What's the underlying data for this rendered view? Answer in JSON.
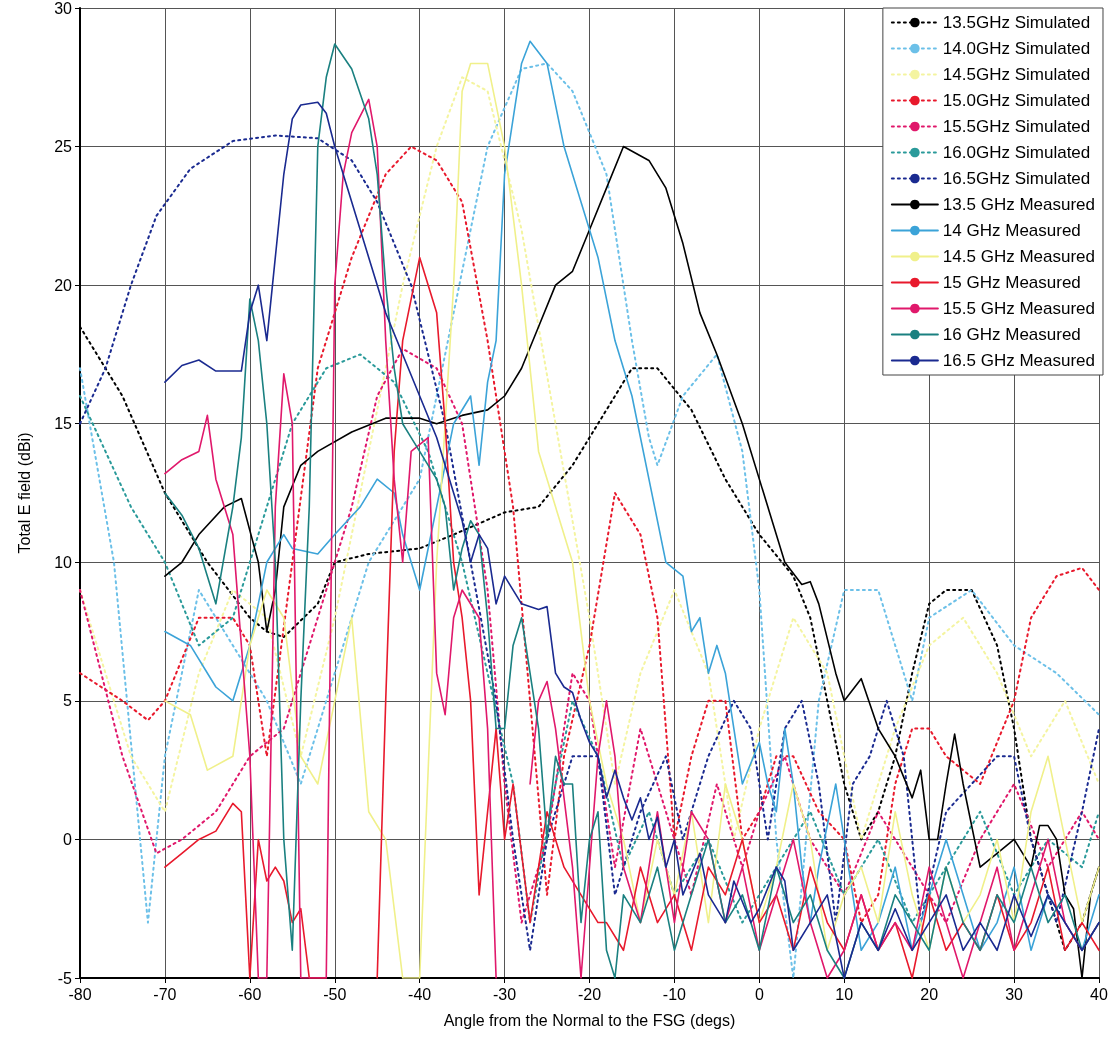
{
  "chart_data": {
    "type": "line",
    "xlabel": "Angle from the Normal to the FSG (degs)",
    "ylabel": "Total E field (dBi)",
    "xlim": [
      -80,
      40
    ],
    "xticks": [
      -80,
      -70,
      -60,
      -50,
      -40,
      -30,
      -20,
      -10,
      0,
      10,
      20,
      30,
      40
    ],
    "ylim": [
      -5,
      30
    ],
    "yticks": [
      -5,
      0,
      5,
      10,
      15,
      20,
      25,
      30
    ],
    "grid": true,
    "legend": "top right",
    "marker": "none",
    "series": [
      {
        "name": "13.5GHz Simulated",
        "color": "#000000",
        "line_style": "dotted",
        "x": [
          -80,
          -75,
          -70,
          -65,
          -60,
          -58,
          -56,
          -52,
          -50,
          -46,
          -40,
          -36,
          -30,
          -26,
          -22,
          -18,
          -15,
          -12,
          -8,
          -4,
          0,
          4,
          6,
          8,
          10,
          12,
          14,
          16,
          18,
          20,
          22,
          25,
          28,
          30,
          32,
          34,
          36,
          38,
          40
        ],
        "values": [
          18.5,
          16,
          12.5,
          10,
          8,
          7.5,
          7.3,
          8.5,
          10,
          10.3,
          10.5,
          11,
          11.8,
          12,
          13.5,
          15.5,
          17,
          17,
          15.5,
          13,
          11,
          9.5,
          8,
          5,
          2,
          0,
          1,
          3,
          6,
          8.5,
          9,
          9,
          7,
          4,
          0,
          -2,
          -4,
          -3,
          -1
        ]
      },
      {
        "name": "14.0GHz Simulated",
        "color": "#6cc0e8",
        "line_style": "dotted",
        "x": [
          -80,
          -76,
          -72,
          -70,
          -66,
          -62,
          -58,
          -54,
          -50,
          -46,
          -42,
          -40,
          -36,
          -32,
          -28,
          -25,
          -22,
          -18,
          -15,
          -13,
          -12,
          -9,
          -5,
          -2,
          0,
          2,
          4,
          7,
          10,
          14,
          18,
          20,
          25,
          30,
          35,
          40
        ],
        "values": [
          17,
          10,
          -3,
          3,
          9,
          7,
          5,
          2,
          6,
          10,
          12,
          13,
          19,
          25,
          27.8,
          28,
          27,
          24,
          18,
          14.5,
          13.5,
          16,
          17.5,
          14,
          9,
          0,
          -5,
          5,
          9,
          9,
          5,
          8,
          9,
          7,
          6,
          4.5
        ]
      },
      {
        "name": "14.5GHz Simulated",
        "color": "#f4f4a0",
        "line_style": "dotted",
        "x": [
          -80,
          -74,
          -70,
          -66,
          -62,
          -58,
          -54,
          -50,
          -46,
          -42,
          -38,
          -35,
          -32,
          -28,
          -24,
          -20,
          -17,
          -14,
          -10,
          -6,
          -3,
          0,
          4,
          8,
          12,
          16,
          20,
          24,
          28,
          32,
          36,
          40
        ],
        "values": [
          9,
          3,
          1,
          6,
          9,
          8,
          3,
          8,
          14,
          20,
          25,
          27.5,
          27,
          22,
          15,
          8,
          2,
          6,
          9,
          6,
          0,
          4,
          8,
          6,
          0,
          4,
          7,
          8,
          6,
          3,
          5,
          2
        ]
      },
      {
        "name": "15.0GHz Simulated",
        "color": "#e8192c",
        "line_style": "dotted",
        "x": [
          -80,
          -75,
          -72,
          -70,
          -66,
          -62,
          -60,
          -58,
          -55,
          -52,
          -48,
          -44,
          -41,
          -38,
          -35,
          -32,
          -29,
          -27,
          -25,
          -23,
          -20,
          -17,
          -14,
          -12,
          -10,
          -8,
          -6,
          -4,
          -2,
          0,
          2,
          4,
          7,
          10,
          12,
          14,
          16,
          18,
          20,
          22,
          26,
          30,
          32,
          35,
          38,
          40
        ],
        "values": [
          6,
          5,
          4.3,
          5,
          8,
          8,
          7,
          3,
          10,
          17,
          21,
          24,
          25,
          24.5,
          23,
          18,
          12,
          5,
          -2,
          3,
          7,
          12.5,
          11,
          8,
          0,
          3,
          5,
          5,
          0,
          1,
          3,
          3,
          1,
          0,
          -3,
          -2,
          2,
          4,
          4,
          3,
          2,
          5,
          8,
          9.5,
          9.8,
          9
        ]
      },
      {
        "name": "15.5GHz Simulated",
        "color": "#e0186b",
        "line_style": "dotted",
        "x": [
          -80,
          -75,
          -71,
          -68,
          -64,
          -60,
          -56,
          -52,
          -48,
          -45,
          -42,
          -38,
          -35,
          -32,
          -30,
          -28,
          -25,
          -22,
          -20,
          -17,
          -14,
          -11,
          -8,
          -5,
          -2,
          0,
          3,
          6,
          10,
          14,
          18,
          22,
          26,
          30,
          34,
          38,
          40
        ],
        "values": [
          9,
          3,
          -0.5,
          0,
          1,
          3,
          4,
          8,
          12,
          16,
          17.7,
          17,
          15,
          9,
          2,
          -3,
          0,
          6,
          5,
          -1,
          4,
          1,
          -2,
          2,
          -1,
          1,
          3,
          0,
          -2,
          1,
          -1,
          -3,
          0,
          2,
          -1,
          1,
          0
        ]
      },
      {
        "name": "16.0GHz Simulated",
        "color": "#2a9a9a",
        "line_style": "dotted",
        "x": [
          -80,
          -74,
          -70,
          -66,
          -62,
          -58,
          -55,
          -51,
          -47,
          -43,
          -39,
          -35,
          -32,
          -29,
          -27,
          -24,
          -22,
          -19,
          -16,
          -13,
          -10,
          -6,
          -2,
          2,
          6,
          10,
          14,
          18,
          22,
          26,
          30,
          34,
          38,
          40
        ],
        "values": [
          16,
          12,
          10,
          7,
          8,
          12,
          15,
          17,
          17.5,
          16.5,
          14,
          10,
          6,
          2,
          -3,
          2,
          5,
          3,
          -1,
          1,
          -2,
          0,
          -3,
          -1,
          1,
          -2,
          0,
          -3,
          -1,
          1,
          -2,
          0,
          -1,
          1
        ]
      },
      {
        "name": "16.5GHz Simulated",
        "color": "#1a2a90",
        "line_style": "dotted",
        "x": [
          -80,
          -77,
          -74,
          -71,
          -67,
          -62,
          -57,
          -52,
          -48,
          -45,
          -41,
          -37,
          -34,
          -31,
          -29,
          -27,
          -25,
          -22,
          -19,
          -17,
          -14,
          -11,
          -9,
          -6,
          -3,
          -1,
          1,
          3,
          5,
          7,
          9,
          11,
          13,
          15,
          17,
          19,
          22,
          25,
          28,
          30,
          32,
          35,
          38,
          40
        ],
        "values": [
          15,
          17,
          20,
          22.5,
          24.2,
          25.2,
          25.4,
          25.3,
          24.5,
          23,
          20,
          15,
          10,
          5,
          0,
          -4,
          0,
          3,
          3,
          -2,
          1,
          3,
          0,
          3,
          5,
          4,
          0,
          4,
          5,
          2,
          -3,
          2,
          3,
          5,
          3,
          -3,
          1,
          2,
          3,
          3,
          0,
          -3,
          1,
          4
        ]
      },
      {
        "name": "13.5 GHz Measured",
        "color": "#000000",
        "line_style": "solid",
        "x": [
          -70,
          -68,
          -66,
          -63,
          -61,
          -59,
          -58,
          -57,
          -56,
          -54,
          -52,
          -48,
          -44,
          -40,
          -38,
          -35,
          -32,
          -30,
          -28,
          -26,
          -24,
          -22,
          -20,
          -18,
          -16,
          -13,
          -11,
          -9,
          -7,
          -5,
          -2,
          1,
          3,
          5,
          6,
          7,
          9,
          10,
          12,
          14,
          16,
          18,
          19,
          20,
          21,
          22,
          23,
          24,
          26,
          28,
          30,
          32,
          33,
          34,
          35,
          36,
          37,
          38,
          39,
          40
        ],
        "values": [
          9.5,
          10,
          11,
          12,
          12.3,
          10,
          7.5,
          9,
          12,
          13.5,
          14,
          14.7,
          15.2,
          15.2,
          15,
          15.3,
          15.5,
          16,
          17,
          18.5,
          20,
          20.5,
          22,
          23.5,
          25,
          24.5,
          23.5,
          21.5,
          19,
          17.5,
          15,
          12,
          10,
          9.2,
          9.3,
          8.5,
          6,
          5,
          5.8,
          4,
          3,
          1.5,
          2.5,
          0,
          0,
          2,
          3.8,
          2,
          -1,
          -0.5,
          0,
          -1,
          0.5,
          0.5,
          0,
          -2,
          -2.5,
          -5,
          -2,
          -1
        ]
      },
      {
        "name": "14 GHz Measured",
        "color": "#3ba3d8",
        "line_style": "solid",
        "x": [
          -70,
          -67,
          -64,
          -62,
          -60,
          -58,
          -56,
          -55,
          -52,
          -50,
          -47,
          -45,
          -43,
          -42,
          -40,
          -38,
          -36,
          -34,
          -33,
          -32,
          -31,
          -30,
          -28,
          -27,
          -25,
          -23,
          -21,
          -19,
          -17,
          -15,
          -13,
          -11,
          -9,
          -8,
          -7,
          -6,
          -5,
          -4,
          -3,
          -2,
          0,
          1,
          2,
          3,
          4,
          5,
          6,
          7,
          9,
          10,
          12,
          14,
          16,
          18,
          20,
          22,
          24,
          26,
          28,
          30,
          32,
          34,
          36,
          38,
          40
        ],
        "values": [
          7.5,
          7,
          5.5,
          5,
          7,
          10,
          11,
          10.5,
          10.3,
          11,
          12,
          13,
          12.5,
          11,
          9,
          12,
          15,
          16,
          13.5,
          16.5,
          18,
          24,
          28,
          28.8,
          28,
          25,
          23,
          21,
          18,
          16,
          13,
          10,
          9.5,
          7.5,
          8,
          6,
          7,
          6,
          4,
          2,
          3.5,
          2,
          1,
          4,
          2,
          -1,
          -3,
          -1,
          2,
          0,
          -4,
          -3,
          -1,
          -4,
          -2,
          0,
          -2,
          -4,
          -3,
          -1,
          -4,
          -2,
          -3,
          -4,
          -2
        ]
      },
      {
        "name": "14.5 GHz Measured",
        "color": "#f0f08a",
        "line_style": "solid",
        "x": [
          -70,
          -67,
          -65,
          -62,
          -60,
          -58,
          -56,
          -54,
          -52,
          -50,
          -48,
          -46,
          -44,
          -42,
          -40,
          -38,
          -36,
          -35,
          -34,
          -32,
          -30,
          -28,
          -26,
          -24,
          -22,
          -20,
          -18,
          -16,
          -14,
          -12,
          -10,
          -8,
          -6,
          -4,
          -2,
          0,
          2,
          4,
          6,
          8,
          10,
          12,
          14,
          16,
          18,
          20,
          22,
          24,
          26,
          28,
          30,
          32,
          34,
          36,
          38,
          40
        ],
        "values": [
          5,
          4.5,
          2.5,
          3,
          7,
          9,
          8,
          3,
          2,
          5,
          8,
          1,
          0,
          -5,
          -5,
          10,
          20,
          27,
          28,
          28,
          25,
          20,
          14,
          12,
          10,
          5,
          2,
          0,
          -3,
          0,
          -2,
          1,
          -3,
          2,
          0,
          -3,
          -1,
          2,
          0,
          -4,
          -2,
          -1,
          -3,
          1,
          -2,
          -4,
          -1,
          -3,
          -2,
          0,
          -3,
          1,
          3,
          0,
          -3,
          -1
        ]
      },
      {
        "name": "15 GHz Measured",
        "color": "#e8192c",
        "line_style": "solid",
        "x": [
          -70,
          -68,
          -66,
          -64,
          -62,
          -61,
          -60,
          -59,
          -58,
          -57,
          -56,
          -55,
          -54,
          -53,
          -51,
          -49,
          -47,
          -45,
          -44,
          -43,
          -42,
          -40,
          -38,
          -37,
          -36,
          -35,
          -34,
          -33,
          -31,
          -30,
          -29,
          -27,
          -25,
          -23,
          -21,
          -19,
          -18,
          -16,
          -14,
          -12,
          -10,
          -8,
          -6,
          -4,
          -2,
          0,
          2,
          4,
          6,
          8,
          10,
          12,
          14,
          16,
          18,
          20,
          22,
          24,
          26,
          28,
          30,
          32,
          34,
          36,
          38,
          40
        ],
        "values": [
          -1,
          -0.5,
          0,
          0.3,
          1.3,
          1,
          -5,
          0,
          -1.5,
          -1,
          -1.5,
          -3,
          -2.5,
          -5,
          -5,
          null,
          null,
          -5,
          5,
          14,
          18,
          21,
          19,
          15,
          10,
          8,
          5,
          -2,
          4,
          0,
          2,
          -3,
          1,
          -1,
          -2,
          -3,
          -3,
          -4,
          -1,
          -3,
          -2,
          -4,
          -1,
          -2,
          0,
          -3,
          -2,
          -4,
          -1,
          -3,
          -4,
          -2,
          -4,
          -3,
          -5,
          -2,
          -4,
          -3,
          -4,
          -2,
          -4,
          -3,
          -1,
          -4,
          -3,
          -4
        ]
      },
      {
        "name": "15.5 GHz Measured",
        "color": "#e0186b",
        "line_style": "solid",
        "x": [
          -70,
          -68,
          -66,
          -65,
          -64,
          -62,
          -60,
          -59,
          -58,
          -57,
          -56,
          -55,
          -54,
          -53,
          -51,
          -50,
          -49,
          -48,
          -46,
          -45,
          -44,
          -43,
          -42,
          -41,
          -39,
          -38,
          -37,
          -36,
          -35,
          -33,
          -32,
          -31,
          -30,
          -28,
          -27,
          -26,
          -25,
          -24,
          -22,
          -21,
          -19,
          -18,
          -17,
          -16,
          -14,
          -12,
          -10,
          -8,
          -6,
          -4,
          -2,
          0,
          2,
          4,
          6,
          8,
          10,
          12,
          14,
          16,
          18,
          20,
          22,
          24,
          26,
          28,
          30,
          32,
          34,
          36,
          38,
          40
        ],
        "values": [
          13.2,
          13.7,
          14,
          15.3,
          13,
          11,
          3,
          -5,
          -5,
          12,
          16.8,
          15,
          -5,
          -5,
          -5,
          20,
          24,
          25.5,
          26.7,
          25,
          18,
          13,
          10,
          14,
          14.5,
          6,
          4.5,
          8,
          9,
          8,
          4,
          -5,
          null,
          null,
          2,
          5,
          5.7,
          4,
          -1,
          -5,
          3,
          5,
          3,
          -1,
          -3,
          1,
          -3,
          1,
          0,
          -3,
          -1,
          -4,
          -2,
          0,
          -3,
          -5,
          -4,
          -2,
          -4,
          -3,
          -4,
          -1,
          -3,
          -5,
          -3,
          -1,
          -4,
          -2,
          0,
          -3,
          -4,
          -3
        ]
      },
      {
        "name": "16 GHz Measured",
        "color": "#1a8080",
        "line_style": "solid",
        "x": [
          -70,
          -68,
          -66,
          -65,
          -64,
          -62,
          -61,
          -60,
          -59,
          -58,
          -57,
          -56,
          -55,
          -54,
          -53,
          -52,
          -51,
          -50,
          -48,
          -46,
          -45,
          -44,
          -43,
          -42,
          -41,
          -40,
          -38,
          -37,
          -36,
          -35,
          -34,
          -33,
          -32,
          -31,
          -30,
          -29,
          -28,
          -27,
          -26,
          -25,
          -24,
          -23,
          -22,
          -21,
          -20,
          -19,
          -18,
          -17,
          -16,
          -14,
          -12,
          -10,
          -8,
          -6,
          -4,
          -2,
          0,
          2,
          4,
          6,
          8,
          10,
          12,
          14,
          16,
          18,
          20,
          22,
          24,
          26,
          28,
          30,
          32,
          34,
          36,
          38,
          40
        ],
        "values": [
          12.5,
          11.7,
          10.5,
          9.5,
          8.5,
          12,
          14.5,
          19.5,
          18,
          15,
          10,
          0,
          -4,
          5,
          12,
          25,
          27.5,
          28.7,
          27.8,
          26,
          24,
          20,
          17,
          15,
          14.5,
          14,
          13,
          12,
          9,
          10.5,
          11.5,
          11,
          8,
          4,
          4,
          7,
          8,
          6,
          4,
          0,
          3,
          2,
          2,
          -3,
          0,
          1,
          -4,
          -5,
          -2,
          -3,
          -1,
          -4,
          -2,
          0,
          -3,
          -2,
          -4,
          -1,
          -3,
          -2,
          -4,
          -5,
          -3,
          -4,
          -2,
          -3,
          -4,
          -1,
          -3,
          -4,
          -2,
          -3,
          -1,
          -3,
          -2,
          -4,
          -3
        ]
      },
      {
        "name": "16.5 GHz Measured",
        "color": "#1a2a90",
        "line_style": "solid",
        "x": [
          -70,
          -68,
          -66,
          -64,
          -61,
          -60,
          -59,
          -58,
          -57,
          -56,
          -55,
          -54,
          -52,
          -51,
          -50,
          -48,
          -46,
          -44,
          -42,
          -40,
          -38,
          -36,
          -35,
          -34,
          -33,
          -32,
          -31,
          -30,
          -28,
          -26,
          -25,
          -24,
          -23,
          -22,
          -21,
          -20,
          -19,
          -18,
          -17,
          -16,
          -15,
          -14,
          -13,
          -12,
          -11,
          -10,
          -9,
          -7,
          -6,
          -4,
          -3,
          -1,
          0,
          2,
          3,
          4,
          6,
          8,
          10,
          12,
          14,
          16,
          18,
          20,
          22,
          24,
          26,
          28,
          30,
          32,
          34,
          36,
          38,
          40
        ],
        "values": [
          16.5,
          17.1,
          17.3,
          16.9,
          16.9,
          19,
          20,
          18,
          21,
          24,
          26,
          26.5,
          26.6,
          26.2,
          25,
          23,
          21,
          19,
          17.5,
          16,
          14.5,
          12.5,
          11.5,
          10,
          11,
          10.5,
          8.5,
          9.5,
          8.5,
          8.3,
          8.4,
          6,
          5.5,
          5.3,
          4.3,
          3.5,
          3,
          1.5,
          2.5,
          1.5,
          0.7,
          1.5,
          0,
          0.8,
          -1,
          0,
          -2,
          -0.5,
          -2,
          -3,
          -1.5,
          -3,
          -2.5,
          -1,
          -1.5,
          -4,
          -3,
          -2,
          -5,
          -3,
          -4,
          -2.5,
          -4,
          -3,
          -2,
          -4,
          -3,
          -4,
          -2,
          -3.5,
          -2,
          -3,
          -4,
          -3
        ]
      }
    ]
  }
}
